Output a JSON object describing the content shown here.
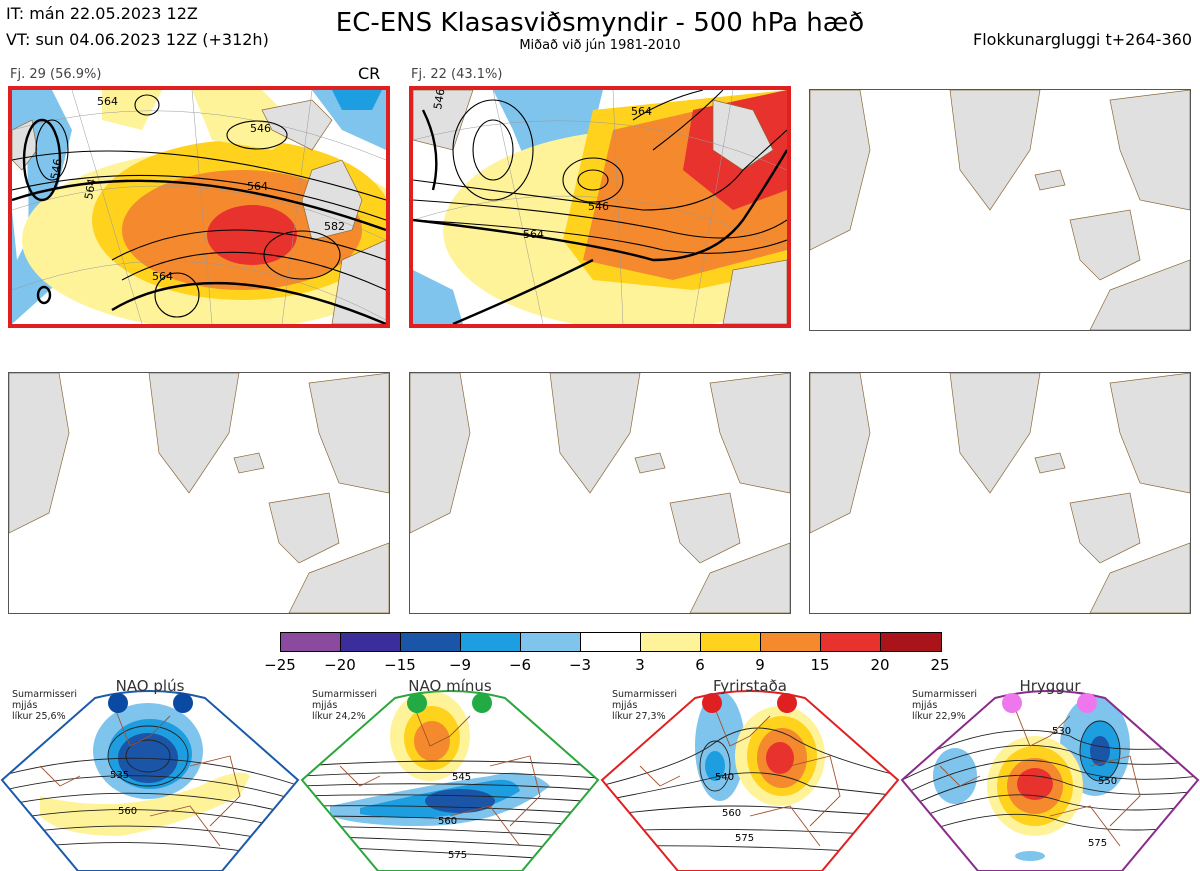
{
  "header": {
    "it_line": "IT: mán 22.05.2023 12Z",
    "vt_line": "VT: sun 04.06.2023 12Z  (+312h)",
    "title": "EC-ENS Klasasviðsmyndir - 500 hPa hæð",
    "subtitle": "Miðað við jún 1981-2010",
    "window": "Flokkunargluggi t+264-360"
  },
  "clusters": [
    {
      "label": "Fj. 29 (56.9%)",
      "tag": "CR",
      "selected": true,
      "contours": [
        "564",
        "546",
        "564",
        "564",
        "582",
        "564",
        "546"
      ]
    },
    {
      "label": "Fj. 22 (43.1%)",
      "tag": "",
      "selected": true,
      "contours": [
        "564",
        "546",
        "564",
        "546"
      ]
    },
    {
      "label": "",
      "tag": "",
      "selected": false
    },
    {
      "label": "",
      "tag": "",
      "selected": false
    },
    {
      "label": "",
      "tag": "",
      "selected": false
    },
    {
      "label": "",
      "tag": "",
      "selected": false
    }
  ],
  "colorbar": {
    "ticks": [
      "−25",
      "−20",
      "−15",
      "−9",
      "−6",
      "−3",
      "3",
      "6",
      "9",
      "15",
      "20",
      "25"
    ],
    "colors": [
      "#8b4a9e",
      "#3b2d9a",
      "#1a55a8",
      "#1d9ee0",
      "#7fc4ec",
      "#ffffff",
      "#fff39a",
      "#ffd21e",
      "#f4892e",
      "#e8322d",
      "#a8141a"
    ]
  },
  "regimes": [
    {
      "name": "NAO plús",
      "info": [
        "Sumarmisseri",
        "mjjás",
        "líkur 25,6%"
      ],
      "border": "#1a5aa8",
      "dot": "#0b4aa3",
      "labels": [
        "535",
        "560"
      ]
    },
    {
      "name": "NAO mínus",
      "info": [
        "Sumarmisseri",
        "mjjás",
        "líkur 24,2%"
      ],
      "border": "#2aa63c",
      "dot": "#22aa44",
      "labels": [
        "545",
        "560",
        "575"
      ]
    },
    {
      "name": "Fyrirstaða",
      "info": [
        "Sumarmisseri",
        "mjjás",
        "líkur 27,3%"
      ],
      "border": "#e02020",
      "dot": "#e02020",
      "labels": [
        "540",
        "560",
        "575"
      ]
    },
    {
      "name": "Hryggur",
      "info": [
        "Sumarmisseri",
        "mjjás",
        "líkur 22,9%"
      ],
      "border": "#8a2a8a",
      "dot": "#ee77ee",
      "labels": [
        "530",
        "550",
        "575"
      ]
    }
  ],
  "colors": {
    "land": "#e0e0e0",
    "coast": "#8a6a3a",
    "selected_border": "#e02020"
  }
}
